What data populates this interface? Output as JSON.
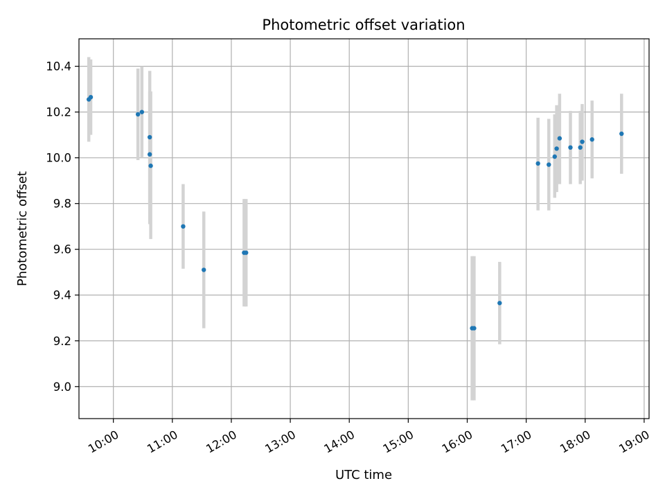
{
  "chart_data": {
    "type": "scatter",
    "title": "Photometric offset variation",
    "xlabel": "UTC time",
    "ylabel": "Photometric offset",
    "xlim": [
      "09:25",
      "19:05"
    ],
    "ylim": [
      8.86,
      10.52
    ],
    "grid": true,
    "x_ticks": [
      "10:00",
      "11:00",
      "12:00",
      "13:00",
      "14:00",
      "15:00",
      "16:00",
      "17:00",
      "18:00",
      "19:00"
    ],
    "y_ticks": [
      9.0,
      9.2,
      9.4,
      9.6,
      9.8,
      10.0,
      10.2,
      10.4
    ],
    "series": [
      {
        "color": "#1f77b4",
        "error_color": "#d3d3d3",
        "points": [
          {
            "x": "09:35",
            "y": 10.255,
            "yerr_low": 10.07,
            "yerr_high": 10.44
          },
          {
            "x": "09:37",
            "y": 10.265,
            "yerr_low": 10.1,
            "yerr_high": 10.43
          },
          {
            "x": "10:25",
            "y": 10.19,
            "yerr_low": 9.99,
            "yerr_high": 10.39
          },
          {
            "x": "10:29",
            "y": 10.2,
            "yerr_low": 10.0,
            "yerr_high": 10.4
          },
          {
            "x": "10:37",
            "y": 10.09,
            "yerr_low": 9.79,
            "yerr_high": 10.38
          },
          {
            "x": "10:37",
            "y": 10.015,
            "yerr_low": 9.71,
            "yerr_high": 10.29
          },
          {
            "x": "10:38",
            "y": 9.965,
            "yerr_low": 9.645,
            "yerr_high": 10.29
          },
          {
            "x": "11:11",
            "y": 9.7,
            "yerr_low": 9.515,
            "yerr_high": 9.885
          },
          {
            "x": "11:32",
            "y": 9.51,
            "yerr_low": 9.255,
            "yerr_high": 9.765
          },
          {
            "x": "12:13",
            "y": 9.585,
            "yerr_low": 9.35,
            "yerr_high": 9.82
          },
          {
            "x": "12:15",
            "y": 9.585,
            "yerr_low": 9.35,
            "yerr_high": 9.82
          },
          {
            "x": "16:05",
            "y": 9.255,
            "yerr_low": 8.94,
            "yerr_high": 9.57
          },
          {
            "x": "16:07",
            "y": 9.255,
            "yerr_low": 8.94,
            "yerr_high": 9.57
          },
          {
            "x": "16:33",
            "y": 9.365,
            "yerr_low": 9.185,
            "yerr_high": 9.545
          },
          {
            "x": "17:12",
            "y": 9.975,
            "yerr_low": 9.77,
            "yerr_high": 10.175
          },
          {
            "x": "17:23",
            "y": 9.97,
            "yerr_low": 9.77,
            "yerr_high": 10.17
          },
          {
            "x": "17:29",
            "y": 10.005,
            "yerr_low": 9.825,
            "yerr_high": 10.19
          },
          {
            "x": "17:31",
            "y": 10.04,
            "yerr_low": 9.85,
            "yerr_high": 10.23
          },
          {
            "x": "17:34",
            "y": 10.085,
            "yerr_low": 9.885,
            "yerr_high": 10.28
          },
          {
            "x": "17:45",
            "y": 10.045,
            "yerr_low": 9.885,
            "yerr_high": 10.205
          },
          {
            "x": "17:55",
            "y": 10.045,
            "yerr_low": 9.885,
            "yerr_high": 10.205
          },
          {
            "x": "17:57",
            "y": 10.07,
            "yerr_low": 9.9,
            "yerr_high": 10.235
          },
          {
            "x": "18:07",
            "y": 10.08,
            "yerr_low": 9.91,
            "yerr_high": 10.25
          },
          {
            "x": "18:37",
            "y": 10.105,
            "yerr_low": 9.93,
            "yerr_high": 10.28
          }
        ]
      }
    ]
  }
}
